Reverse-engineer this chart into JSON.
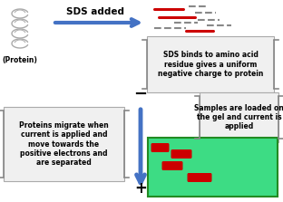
{
  "bg_color": "#ffffff",
  "arrow_color": "#4472c4",
  "gel_color": "#3ddc84",
  "gel_border": "#228B22",
  "red_band_color": "#cc0000",
  "bracket_color": "#888888",
  "text_sds_added": "SDS added",
  "text_box1": "SDS binds to amino acid\nresidue gives a uniform\nnegative charge to protein",
  "text_box2": "Samples are loaded on\nthe gel and current is\napplied",
  "text_box3": "Proteins migrate when\ncurrent is applied and\nmove towards the\npositive electrons and\nare separated",
  "text_protein": "(Protein)",
  "minus_sign": "−",
  "plus_sign": "+",
  "figsize": [
    3.12,
    2.23
  ],
  "dpi": 100,
  "arrow_lw": 3.0,
  "arrow_mutation": 14
}
